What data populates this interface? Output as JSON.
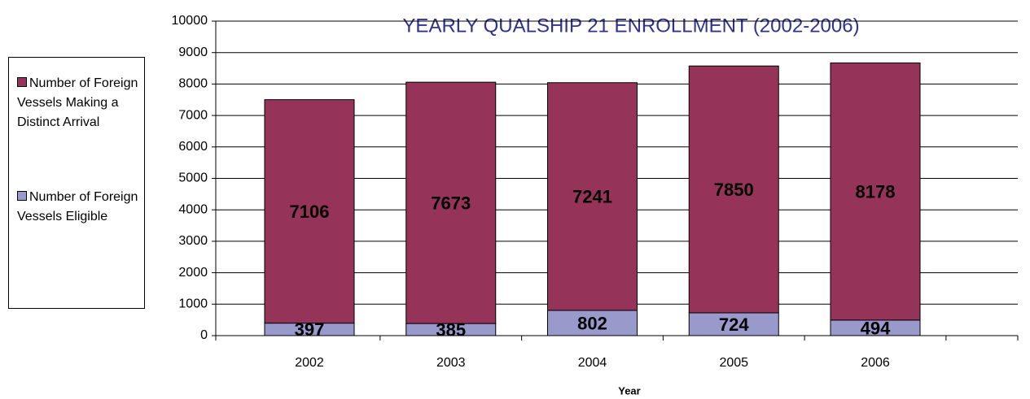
{
  "chart_data": {
    "type": "stacked_bar",
    "title": "YEARLY QUALSHIP 21 ENROLLMENT (2002-2006)",
    "x_label": "Year",
    "categories": [
      "2002",
      "2003",
      "2004",
      "2005",
      "2006"
    ],
    "series": [
      {
        "name": "Number of Foreign Vessels Eligible",
        "color": "#9999cc",
        "values": [
          397,
          385,
          802,
          724,
          494
        ]
      },
      {
        "name": "Number of Foreign Vessels Making a Distinct Arrival",
        "color": "#953458",
        "values": [
          7106,
          7673,
          7241,
          7850,
          8178
        ]
      }
    ],
    "ylim": [
      0,
      10000
    ],
    "yticks": [
      0,
      1000,
      2000,
      3000,
      4000,
      5000,
      6000,
      7000,
      8000,
      9000,
      10000
    ],
    "grid": true,
    "legend": "left"
  }
}
